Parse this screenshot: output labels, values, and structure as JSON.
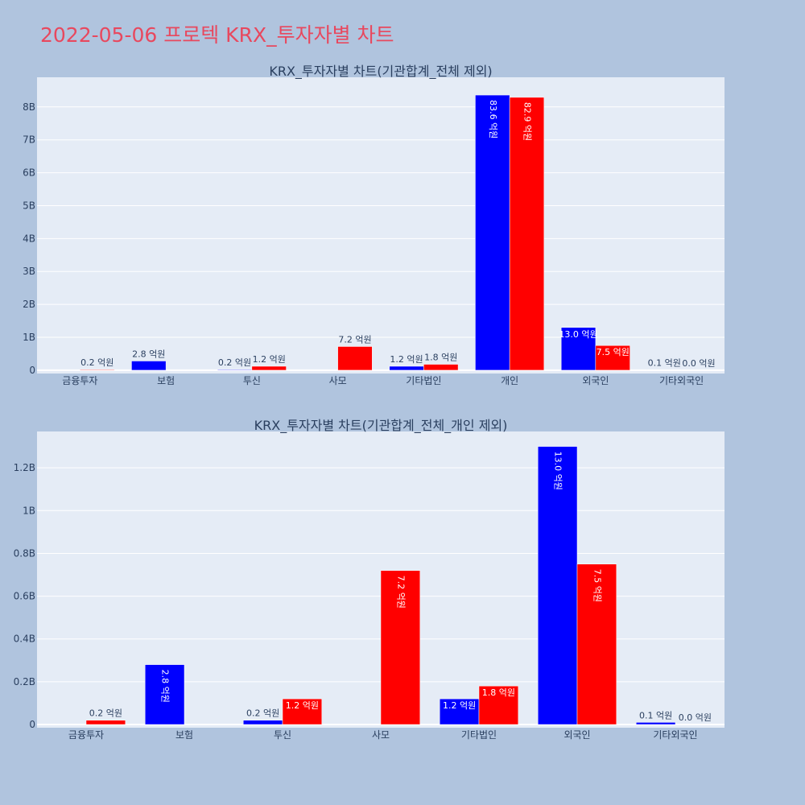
{
  "page": {
    "title": "2022-05-06 프로텍 KRX_투자자별 차트"
  },
  "colors": {
    "page_bg": "#b0c4de",
    "plot_bg": "#e5ecf6",
    "buy": "#0000ff",
    "sell": "#ff0000",
    "title": "#e8485e",
    "text": "#2a3f5f"
  },
  "chart_data": [
    {
      "type": "bar",
      "title": "KRX_투자자별 차트(기관합계_전체 제외)",
      "categories": [
        "금융투자",
        "보험",
        "투신",
        "사모",
        "기타법인",
        "개인",
        "외국인",
        "기타외국인"
      ],
      "series": [
        {
          "color": "#0000ff",
          "values": [
            0,
            280000000,
            20000000,
            0,
            120000000,
            8360000000,
            1300000000,
            10000000
          ],
          "labels": [
            "",
            "2.8 억원",
            "0.2 억원",
            "",
            "1.2 억원",
            "83.6 억원",
            "13.0 억원",
            "0.1 억원"
          ]
        },
        {
          "color": "#ff0000",
          "values": [
            20000000,
            0,
            120000000,
            720000000,
            180000000,
            8290000000,
            750000000,
            0
          ],
          "labels": [
            "0.2 억원",
            "",
            "1.2 억원",
            "7.2 억원",
            "1.8 억원",
            "82.9 억원",
            "7.5 억원",
            "0.0 억원"
          ]
        }
      ],
      "ylim": [
        -100000000,
        8900000000
      ],
      "yticks": [
        0,
        1000000000,
        2000000000,
        3000000000,
        4000000000,
        5000000000,
        6000000000,
        7000000000,
        8000000000
      ],
      "ytick_labels": [
        "0",
        "1B",
        "2B",
        "3B",
        "4B",
        "5B",
        "6B",
        "7B",
        "8B"
      ],
      "grid": true,
      "legend": "none"
    },
    {
      "type": "bar",
      "title": "KRX_투자자별 차트(기관합계_전체_개인 제외)",
      "categories": [
        "금융투자",
        "보험",
        "투신",
        "사모",
        "기타법인",
        "외국인",
        "기타외국인"
      ],
      "series": [
        {
          "color": "#0000ff",
          "values": [
            0,
            280000000,
            20000000,
            0,
            120000000,
            1300000000,
            10000000
          ],
          "labels": [
            "",
            "2.8 억원",
            "0.2 억원",
            "",
            "1.2 억원",
            "13.0 억원",
            "0.1 억원"
          ]
        },
        {
          "color": "#ff0000",
          "values": [
            20000000,
            0,
            120000000,
            720000000,
            180000000,
            750000000,
            0
          ],
          "labels": [
            "0.2 억원",
            "",
            "1.2 억원",
            "7.2 억원",
            "1.8 억원",
            "7.5 억원",
            "0.0 억원"
          ]
        }
      ],
      "ylim": [
        -15000000,
        1370000000
      ],
      "yticks": [
        0,
        200000000,
        400000000,
        600000000,
        800000000,
        1000000000,
        1200000000
      ],
      "ytick_labels": [
        "0",
        "0.2B",
        "0.4B",
        "0.6B",
        "0.8B",
        "1B",
        "1.2B"
      ],
      "grid": true,
      "legend": "none"
    }
  ]
}
